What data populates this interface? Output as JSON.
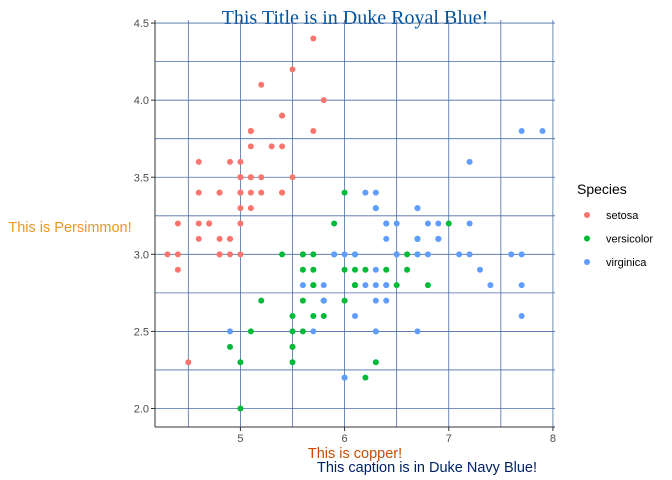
{
  "chart_data": {
    "type": "scatter",
    "title": "This Title is in Duke Royal Blue!",
    "xlabel": "This is copper!",
    "ylabel": "This is Persimmon!",
    "caption": "This caption is in Duke Navy Blue!",
    "xlim": [
      4.18,
      8.02
    ],
    "ylim": [
      1.88,
      4.52
    ],
    "x_ticks": [
      5,
      6,
      7,
      8
    ],
    "y_ticks": [
      2.0,
      2.5,
      3.0,
      3.5,
      4.0,
      4.5
    ],
    "x_tick_labels": [
      "5",
      "6",
      "7",
      "8"
    ],
    "y_tick_labels": [
      "2.0",
      "2.5",
      "3.0",
      "3.5",
      "4.0",
      "4.5"
    ],
    "grid": true,
    "legend": {
      "title": "Species",
      "position": "right"
    },
    "series": [
      {
        "name": "setosa",
        "color": "#F8766D",
        "points": [
          [
            5.1,
            3.5
          ],
          [
            4.9,
            3.0
          ],
          [
            4.7,
            3.2
          ],
          [
            4.6,
            3.1
          ],
          [
            5.0,
            3.6
          ],
          [
            5.4,
            3.9
          ],
          [
            4.6,
            3.4
          ],
          [
            5.0,
            3.4
          ],
          [
            4.4,
            2.9
          ],
          [
            4.9,
            3.1
          ],
          [
            5.4,
            3.7
          ],
          [
            4.8,
            3.4
          ],
          [
            4.8,
            3.0
          ],
          [
            4.3,
            3.0
          ],
          [
            5.8,
            4.0
          ],
          [
            5.7,
            4.4
          ],
          [
            5.4,
            3.9
          ],
          [
            5.1,
            3.5
          ],
          [
            5.7,
            3.8
          ],
          [
            5.1,
            3.8
          ],
          [
            5.4,
            3.4
          ],
          [
            5.1,
            3.7
          ],
          [
            4.6,
            3.6
          ],
          [
            5.1,
            3.3
          ],
          [
            4.8,
            3.4
          ],
          [
            5.0,
            3.0
          ],
          [
            5.0,
            3.4
          ],
          [
            5.2,
            3.5
          ],
          [
            5.2,
            3.4
          ],
          [
            4.7,
            3.2
          ],
          [
            4.8,
            3.1
          ],
          [
            5.4,
            3.4
          ],
          [
            5.2,
            4.1
          ],
          [
            5.5,
            4.2
          ],
          [
            4.9,
            3.1
          ],
          [
            5.0,
            3.2
          ],
          [
            5.5,
            3.5
          ],
          [
            4.9,
            3.6
          ],
          [
            4.4,
            3.0
          ],
          [
            5.1,
            3.4
          ],
          [
            5.0,
            3.5
          ],
          [
            4.5,
            2.3
          ],
          [
            4.4,
            3.2
          ],
          [
            5.0,
            3.5
          ],
          [
            5.1,
            3.8
          ],
          [
            4.8,
            3.0
          ],
          [
            5.1,
            3.8
          ],
          [
            4.6,
            3.2
          ],
          [
            5.3,
            3.7
          ],
          [
            5.0,
            3.3
          ]
        ]
      },
      {
        "name": "versicolor",
        "color": "#00BA38",
        "points": [
          [
            7.0,
            3.2
          ],
          [
            6.4,
            3.2
          ],
          [
            6.9,
            3.1
          ],
          [
            5.5,
            2.3
          ],
          [
            6.5,
            2.8
          ],
          [
            5.7,
            2.8
          ],
          [
            6.3,
            3.3
          ],
          [
            4.9,
            2.4
          ],
          [
            6.6,
            2.9
          ],
          [
            5.2,
            2.7
          ],
          [
            5.0,
            2.0
          ],
          [
            5.9,
            3.0
          ],
          [
            6.0,
            2.2
          ],
          [
            6.1,
            2.9
          ],
          [
            5.6,
            2.9
          ],
          [
            6.7,
            3.1
          ],
          [
            5.6,
            3.0
          ],
          [
            5.8,
            2.7
          ],
          [
            6.2,
            2.2
          ],
          [
            5.6,
            2.5
          ],
          [
            5.9,
            3.2
          ],
          [
            6.1,
            2.8
          ],
          [
            6.3,
            2.5
          ],
          [
            6.1,
            2.8
          ],
          [
            6.4,
            2.9
          ],
          [
            6.6,
            3.0
          ],
          [
            6.8,
            2.8
          ],
          [
            6.7,
            3.0
          ],
          [
            6.0,
            2.9
          ],
          [
            5.7,
            2.6
          ],
          [
            5.5,
            2.4
          ],
          [
            5.5,
            2.4
          ],
          [
            5.8,
            2.7
          ],
          [
            6.0,
            2.7
          ],
          [
            5.4,
            3.0
          ],
          [
            6.0,
            3.4
          ],
          [
            6.7,
            3.1
          ],
          [
            6.3,
            2.3
          ],
          [
            5.6,
            3.0
          ],
          [
            5.5,
            2.5
          ],
          [
            5.5,
            2.6
          ],
          [
            6.1,
            3.0
          ],
          [
            5.8,
            2.6
          ],
          [
            5.0,
            2.3
          ],
          [
            5.6,
            2.7
          ],
          [
            5.7,
            3.0
          ],
          [
            5.7,
            2.9
          ],
          [
            6.2,
            2.9
          ],
          [
            5.1,
            2.5
          ],
          [
            5.7,
            2.8
          ]
        ]
      },
      {
        "name": "virginica",
        "color": "#619CFF",
        "points": [
          [
            6.3,
            3.3
          ],
          [
            5.8,
            2.7
          ],
          [
            7.1,
            3.0
          ],
          [
            6.3,
            2.9
          ],
          [
            6.5,
            3.0
          ],
          [
            7.6,
            3.0
          ],
          [
            4.9,
            2.5
          ],
          [
            7.3,
            2.9
          ],
          [
            6.7,
            2.5
          ],
          [
            7.2,
            3.6
          ],
          [
            6.5,
            3.2
          ],
          [
            6.4,
            2.7
          ],
          [
            6.8,
            3.0
          ],
          [
            5.7,
            2.5
          ],
          [
            5.8,
            2.8
          ],
          [
            6.4,
            3.2
          ],
          [
            6.5,
            3.0
          ],
          [
            7.7,
            3.8
          ],
          [
            7.7,
            2.6
          ],
          [
            6.0,
            2.2
          ],
          [
            6.9,
            3.2
          ],
          [
            5.6,
            2.8
          ],
          [
            7.7,
            2.8
          ],
          [
            6.3,
            2.7
          ],
          [
            6.7,
            3.3
          ],
          [
            7.2,
            3.2
          ],
          [
            6.2,
            2.8
          ],
          [
            6.1,
            3.0
          ],
          [
            6.4,
            2.8
          ],
          [
            7.2,
            3.0
          ],
          [
            7.4,
            2.8
          ],
          [
            7.9,
            3.8
          ],
          [
            6.4,
            2.8
          ],
          [
            6.3,
            2.8
          ],
          [
            6.1,
            2.6
          ],
          [
            7.7,
            3.0
          ],
          [
            6.3,
            3.4
          ],
          [
            6.4,
            3.1
          ],
          [
            6.0,
            3.0
          ],
          [
            6.9,
            3.1
          ],
          [
            6.7,
            3.1
          ],
          [
            6.9,
            3.1
          ],
          [
            5.8,
            2.7
          ],
          [
            6.8,
            3.2
          ],
          [
            6.7,
            3.3
          ],
          [
            6.7,
            3.0
          ],
          [
            6.3,
            2.5
          ],
          [
            6.5,
            3.0
          ],
          [
            6.2,
            3.4
          ],
          [
            5.9,
            3.0
          ]
        ]
      }
    ]
  },
  "colors": {
    "title": "#00539B",
    "ylabel": "#E89923",
    "xlabel": "#C84E00",
    "caption": "#012169",
    "grid": "#4A6FA5",
    "axis": "#333333"
  }
}
